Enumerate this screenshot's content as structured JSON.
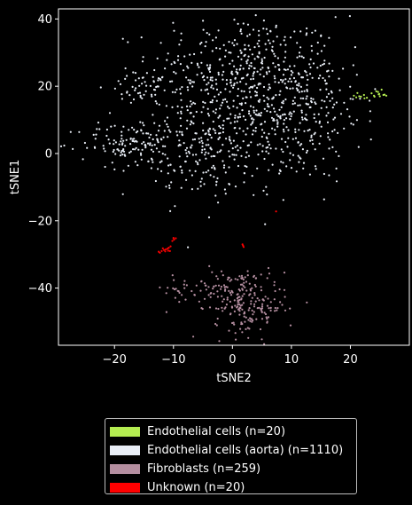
{
  "chart_data": {
    "type": "scatter",
    "xlabel": "tSNE2",
    "ylabel": "tSNE1",
    "xlim": [
      -29.5,
      30
    ],
    "ylim": [
      -57,
      43
    ],
    "xticks": [
      -20,
      -10,
      0,
      10,
      20
    ],
    "yticks": [
      -40,
      -20,
      0,
      20,
      40
    ],
    "grid": false,
    "legend_position": "below plot",
    "background": "#000000",
    "series": [
      {
        "name": "Endothelial cells (n=20)",
        "color": "#b4ec51",
        "count": 20,
        "values": [
          [
            21.2,
            18.0
          ],
          [
            21.8,
            16.9
          ],
          [
            22.3,
            17.4
          ],
          [
            22.8,
            16.6
          ],
          [
            21.5,
            17.0
          ],
          [
            20.6,
            17.2
          ],
          [
            24.0,
            17.2
          ],
          [
            24.4,
            18.5
          ],
          [
            24.8,
            17.6
          ],
          [
            25.3,
            19.0
          ],
          [
            25.6,
            17.4
          ],
          [
            26.1,
            17.2
          ],
          [
            24.1,
            16.9
          ],
          [
            23.6,
            17.9
          ],
          [
            22.4,
            16.4
          ],
          [
            24.7,
            18.3
          ],
          [
            25.0,
            17.0
          ],
          [
            21.0,
            16.7
          ],
          [
            24.9,
            17.7
          ],
          [
            25.8,
            17.5
          ]
        ]
      },
      {
        "name": "Endothelial cells (aorta) (n=1110)",
        "color": "#e8edf5",
        "count": 1110,
        "clusters": [
          {
            "cx": 2,
            "cy": 25,
            "sx": 8,
            "sy": 8,
            "n": 390
          },
          {
            "cx": -4,
            "cy": 3,
            "sx": 7,
            "sy": 8,
            "n": 330
          },
          {
            "cx": 10,
            "cy": 10,
            "sx": 6,
            "sy": 9,
            "n": 220
          },
          {
            "cx": -18,
            "cy": 3,
            "sx": 4,
            "sy": 3,
            "n": 100
          },
          {
            "cx": -15,
            "cy": 20,
            "sx": 3,
            "sy": 2,
            "n": 40
          },
          {
            "cx": 16,
            "cy": 18,
            "sx": 3,
            "sy": 4,
            "n": 30
          }
        ]
      },
      {
        "name": "Fibroblasts (n=259)",
        "color": "#b48ea0",
        "count": 259,
        "clusters": [
          {
            "cx": -1,
            "cy": -40,
            "sx": 5,
            "sy": 3,
            "n": 130
          },
          {
            "cx": 3,
            "cy": -46,
            "sx": 3,
            "sy": 4,
            "n": 129
          }
        ]
      },
      {
        "name": "Unknown (n=20)",
        "color": "#ff0000",
        "count": 20,
        "values": [
          [
            -12.5,
            -29.2
          ],
          [
            -12.0,
            -29.0
          ],
          [
            -11.6,
            -28.7
          ],
          [
            -11.3,
            -28.5
          ],
          [
            -11.0,
            -28.3
          ],
          [
            -10.8,
            -28.0
          ],
          [
            -10.5,
            -27.6
          ],
          [
            -10.9,
            -28.9
          ],
          [
            -11.8,
            -28.2
          ],
          [
            -12.3,
            -29.5
          ],
          [
            -10.2,
            -26.0
          ],
          [
            -9.9,
            -25.6
          ],
          [
            -9.6,
            -25.2
          ],
          [
            -10.0,
            -25.1
          ],
          [
            1.7,
            -27.0
          ],
          [
            1.9,
            -27.8
          ],
          [
            1.8,
            -27.4
          ],
          [
            7.4,
            -17.2
          ],
          [
            -10.6,
            -29.0
          ],
          [
            -11.4,
            -29.1
          ]
        ]
      }
    ]
  },
  "legend": {
    "items": [
      {
        "label": "Endothelial cells (n=20)",
        "color": "#b4ec51"
      },
      {
        "label": "Endothelial cells (aorta) (n=1110)",
        "color": "#e8edf5"
      },
      {
        "label": "Fibroblasts (n=259)",
        "color": "#b48ea0"
      },
      {
        "label": "Unknown (n=20)",
        "color": "#ff0000"
      }
    ]
  }
}
